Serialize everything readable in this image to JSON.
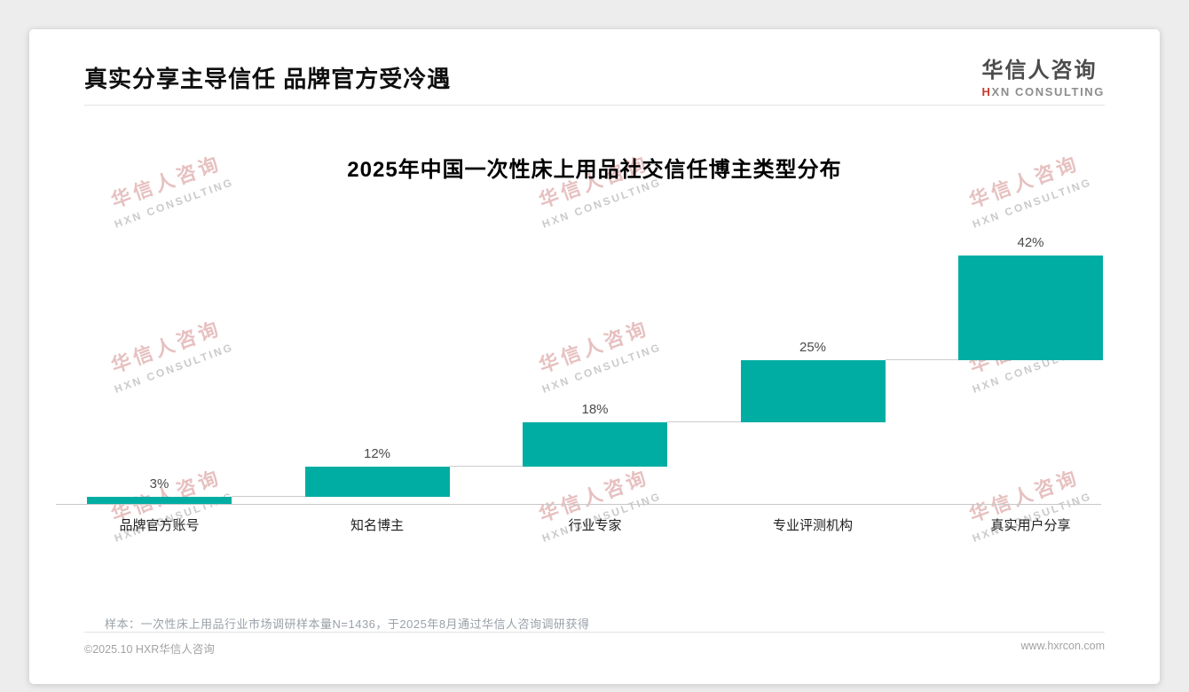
{
  "header": {
    "title": "真实分享主导信任 品牌官方受冷遇"
  },
  "logo": {
    "cn": "华信人咨询",
    "en_accent": "H",
    "en_rest": "XN CONSULTING",
    "accent_color": "#C43D2B"
  },
  "chart_data": {
    "type": "bar",
    "subtype": "waterfall-steps",
    "title": "2025年中国一次性床上用品社交信任博主类型分布",
    "categories": [
      "品牌官方账号",
      "知名博主",
      "行业专家",
      "专业评测机构",
      "真实用户分享"
    ],
    "values": [
      3,
      12,
      18,
      25,
      42
    ],
    "value_labels": [
      "3%",
      "12%",
      "18%",
      "25%",
      "42%"
    ],
    "bar_color": "#00ADA3",
    "ylim": [
      0,
      100
    ],
    "unit": "%",
    "legend": false,
    "grid": false
  },
  "footnote": {
    "text": "样本：一次性床上用品行业市场调研样本量N=1436，于2025年8月通过华信人咨询调研获得"
  },
  "footer": {
    "left": "©2025.10 HXR华信人咨询",
    "right": "www.hxrcon.com"
  },
  "watermark": {
    "line1": "华信人咨询",
    "line2": "HXN CONSULTING"
  }
}
